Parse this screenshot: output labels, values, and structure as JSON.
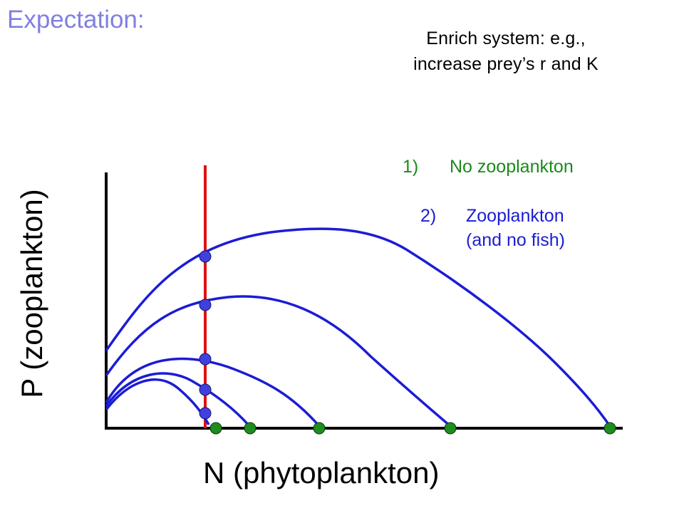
{
  "heading": {
    "text": "Expectation:",
    "color": "#8080e0"
  },
  "note": {
    "line1": "Enrich system: e.g.,",
    "line2": "increase prey’s r and K"
  },
  "list": [
    {
      "num": "1)",
      "lines": [
        "No zooplankton"
      ],
      "color": "#1a8a1a"
    },
    {
      "num": "2)",
      "lines": [
        "Zooplankton",
        "(and no fish)"
      ],
      "color": "#1c1cd6"
    }
  ],
  "axes": {
    "y_label": "P (zooplankton)",
    "x_label": "N (phytoplankton)"
  },
  "colors": {
    "curve": "#1c1cd6",
    "isocline": "#dd1111",
    "equilibrium_fill": "#4040e0",
    "prey_only_fill": "#1e8c1e",
    "axis": "#000000"
  }
}
